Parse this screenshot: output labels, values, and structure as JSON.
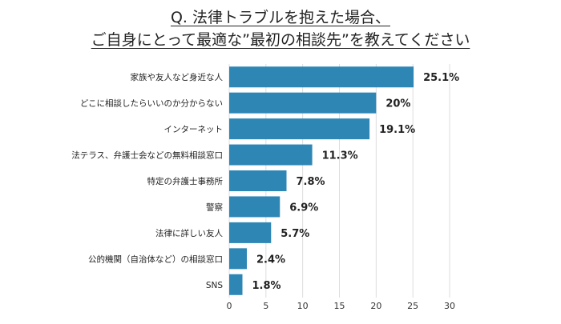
{
  "chart_data": {
    "type": "bar",
    "orientation": "horizontal",
    "title_lines": [
      "Q. 法律トラブルを抱えた場合、",
      "ご自身にとって最適な”最初の相談先”を教えてください"
    ],
    "categories": [
      "家族や友人など身近な人",
      "どこに相談したらいいのか分からない",
      "インターネット",
      "法テラス、弁護士会などの無料相談窓口",
      "特定の弁護士事務所",
      "警察",
      "法律に詳しい友人",
      "公的機関（自治体など）の相談窓口",
      "SNS"
    ],
    "values": [
      25.1,
      20,
      19.1,
      11.3,
      7.8,
      6.9,
      5.7,
      2.4,
      1.8
    ],
    "value_labels": [
      "25.1%",
      "20%",
      "19.1%",
      "11.3%",
      "7.8%",
      "6.9%",
      "5.7%",
      "2.4%",
      "1.8%"
    ],
    "xlim": [
      0,
      30
    ],
    "xticks": [
      0,
      5,
      10,
      15,
      20,
      25,
      30
    ],
    "xtick_labels": [
      "0",
      "5",
      "10",
      "15",
      "20",
      "25",
      "30"
    ],
    "grid": true,
    "legend": "none",
    "colors": {
      "bar": "#2e86b5",
      "grid": "#dddddd",
      "text": "#222222"
    }
  }
}
